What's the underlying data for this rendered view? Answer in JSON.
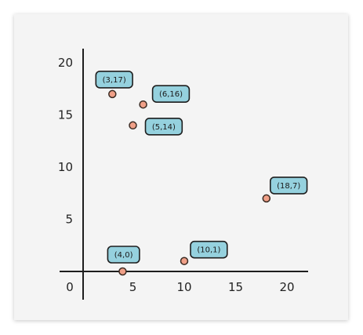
{
  "chart_data": {
    "type": "scatter",
    "title": "",
    "xlabel": "",
    "ylabel": "",
    "xlim": [
      -2.2,
      22
    ],
    "ylim": [
      -0.4,
      22
    ],
    "x_ticks": [
      "5",
      "10",
      "15",
      "20"
    ],
    "y_ticks": [
      "5",
      "10",
      "15",
      "20"
    ],
    "origin_label": "0",
    "grid": false,
    "points": [
      {
        "x": 3,
        "y": 17,
        "label": "(3,17)"
      },
      {
        "x": 6,
        "y": 16,
        "label": "(6,16)"
      },
      {
        "x": 5,
        "y": 14,
        "label": "(5,14)"
      },
      {
        "x": 18,
        "y": 7,
        "label": "(18,7)"
      },
      {
        "x": 4,
        "y": 0,
        "label": "(4,0)"
      },
      {
        "x": 10,
        "y": 1,
        "label": "(10,1)"
      }
    ],
    "colors": {
      "marker_fill": "#f0a088",
      "marker_stroke": "#3a2a22",
      "label_fill": "#95d1de",
      "label_stroke": "#1e1e1e",
      "axis": "#1e1e1e"
    }
  }
}
